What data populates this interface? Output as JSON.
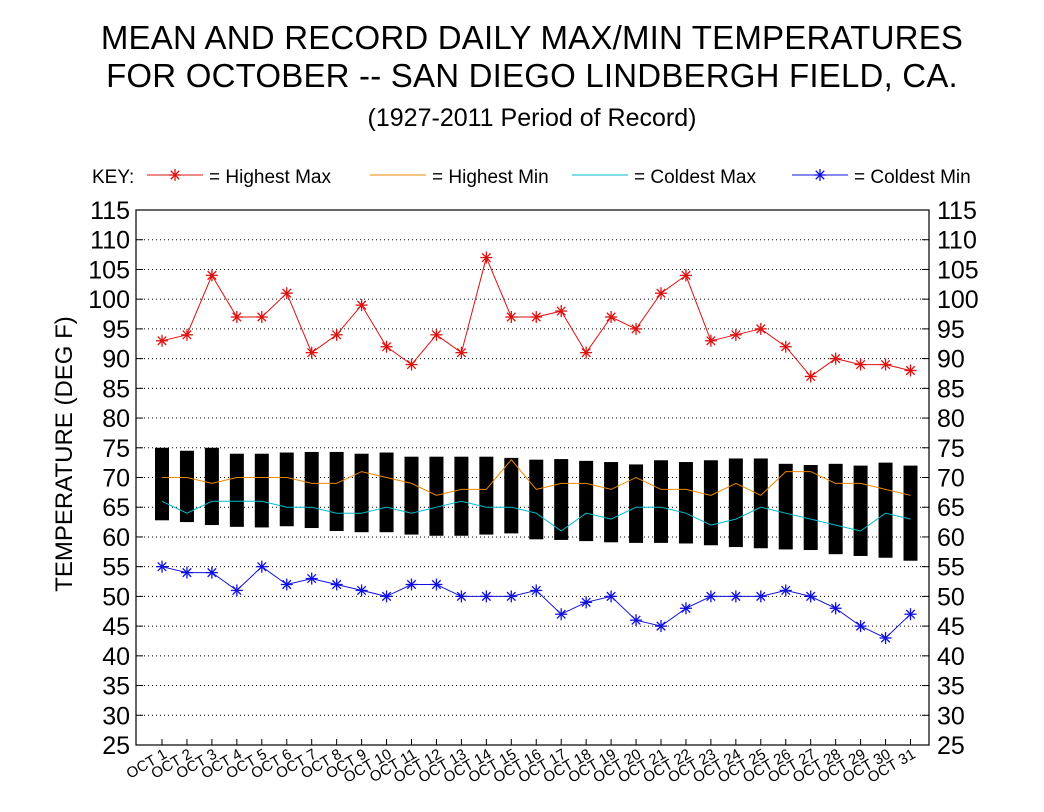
{
  "title_line1": "MEAN AND RECORD DAILY MAX/MIN TEMPERATURES",
  "title_line2": "FOR OCTOBER -- SAN DIEGO LINDBERGH FIELD, CA.",
  "subtitle": "(1927-2011 Period of Record)",
  "legend": {
    "key_label": "KEY:",
    "items": [
      {
        "label": "= Highest Max",
        "color": "#dd1111",
        "marker": "asterisk"
      },
      {
        "label": "= Highest Min",
        "color": "#ee8800",
        "marker": "none"
      },
      {
        "label": "= Coldest Max",
        "color": "#00bbcc",
        "marker": "none"
      },
      {
        "label": "= Coldest Min",
        "color": "#1111dd",
        "marker": "asterisk"
      }
    ]
  },
  "chart_data": {
    "type": "line",
    "ylabel": "TEMPERATURE (DEG F)",
    "ylim": [
      25,
      115
    ],
    "y_ticks": [
      25,
      30,
      35,
      40,
      45,
      50,
      55,
      60,
      65,
      70,
      75,
      80,
      85,
      90,
      95,
      100,
      105,
      110,
      115
    ],
    "grid": "horizontal dotted",
    "categories": [
      "OCT 1",
      "OCT 2",
      "OCT 3",
      "OCT 4",
      "OCT 5",
      "OCT 6",
      "OCT 7",
      "OCT 8",
      "OCT 9",
      "OCT 10",
      "OCT 11",
      "OCT 12",
      "OCT 13",
      "OCT 14",
      "OCT 15",
      "OCT 16",
      "OCT 17",
      "OCT 18",
      "OCT 19",
      "OCT 20",
      "OCT 21",
      "OCT 22",
      "OCT 23",
      "OCT 24",
      "OCT 25",
      "OCT 26",
      "OCT 27",
      "OCT 28",
      "OCT 29",
      "OCT 30",
      "OCT 31"
    ],
    "mean_range": {
      "color": "#000000",
      "mean_max": [
        75,
        74.5,
        75,
        74,
        74,
        74.2,
        74.3,
        74.3,
        74,
        74.2,
        73.5,
        73.5,
        73.5,
        73.5,
        73.3,
        73,
        73.1,
        72.8,
        72.6,
        72.2,
        72.9,
        72.6,
        72.9,
        73.2,
        73.2,
        72.3,
        72.1,
        72.3,
        72,
        72.5,
        72
      ],
      "mean_min": [
        62.8,
        62.5,
        62,
        61.7,
        61.6,
        61.8,
        61.5,
        61,
        60.8,
        60.8,
        60.4,
        60.2,
        60.2,
        60.4,
        60.6,
        59.6,
        59.5,
        59.3,
        59.1,
        59,
        59,
        58.9,
        58.6,
        58.3,
        58.1,
        57.9,
        57.8,
        57.1,
        56.8,
        56.5,
        56
      ]
    },
    "series": [
      {
        "name": "Highest Max",
        "color": "#dd1111",
        "values": [
          93,
          94,
          104,
          97,
          97,
          101,
          91,
          94,
          99,
          92,
          89,
          94,
          91,
          107,
          97,
          97,
          98,
          91,
          97,
          95,
          101,
          104,
          93,
          94,
          95,
          92,
          87,
          90,
          89,
          89,
          88
        ]
      },
      {
        "name": "Highest Min",
        "color": "#ee8800",
        "values": [
          70,
          70,
          69,
          70,
          70,
          70,
          69,
          69,
          71,
          70,
          69,
          67,
          68,
          68,
          73,
          68,
          69,
          69,
          68,
          70,
          68,
          68,
          67,
          69,
          67,
          71,
          71,
          69,
          69,
          68,
          67
        ]
      },
      {
        "name": "Coldest Max",
        "color": "#00bbcc",
        "values": [
          66,
          64,
          66,
          66,
          66,
          65,
          65,
          64,
          64,
          65,
          64,
          65,
          66,
          65,
          65,
          64,
          61,
          64,
          63,
          65,
          65,
          64,
          62,
          63,
          65,
          64,
          63,
          62,
          61,
          64,
          63
        ]
      },
      {
        "name": "Coldest Min",
        "color": "#1111dd",
        "values": [
          55,
          54,
          54,
          51,
          55,
          52,
          53,
          52,
          51,
          50,
          52,
          52,
          50,
          50,
          50,
          51,
          47,
          49,
          50,
          46,
          45,
          48,
          50,
          50,
          50,
          51,
          50,
          48,
          45,
          43,
          47
        ]
      }
    ]
  }
}
